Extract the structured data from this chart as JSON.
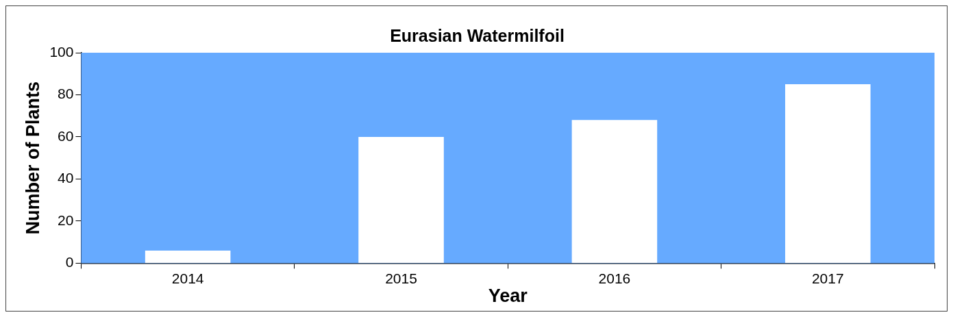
{
  "chart_data": {
    "type": "bar",
    "title": "Eurasian Watermilfoil",
    "xlabel": "Year",
    "ylabel": "Number of Plants",
    "categories": [
      "2014",
      "2015",
      "2016",
      "2017"
    ],
    "series": [
      {
        "color": "#ffffff",
        "values": [
          6,
          60,
          68,
          85
        ]
      }
    ],
    "ylim": [
      0,
      100
    ],
    "yticks": [
      0,
      20,
      40,
      60,
      80,
      100
    ],
    "legend": false
  }
}
